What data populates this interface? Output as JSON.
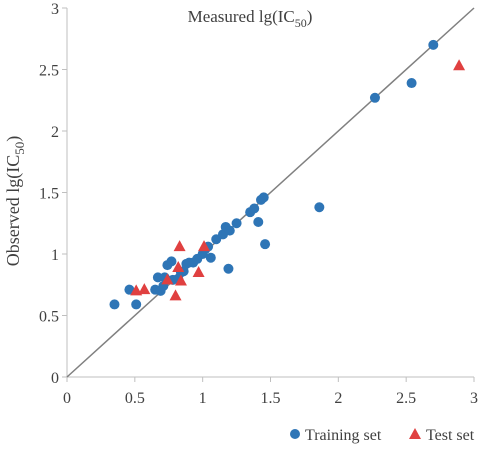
{
  "chart_data": {
    "type": "scatter",
    "title": "Measured lg(IC50)",
    "title_main": "Measured lg(IC",
    "title_sub": "50",
    "title_close": ")",
    "xlabel": "",
    "ylabel": "Observed lg(IC50)",
    "ylabel_main": "Observed lg(IC",
    "ylabel_sub": "50",
    "ylabel_close": ")",
    "xlim": [
      0,
      3
    ],
    "ylim": [
      0,
      3
    ],
    "x_ticks": [
      "0",
      "0.5",
      "1",
      "1.5",
      "2",
      "2.5",
      "3"
    ],
    "y_ticks": [
      "0",
      "0.5",
      "1",
      "1.5",
      "2",
      "2.5",
      "3"
    ],
    "reference_line": {
      "x": [
        0,
        3
      ],
      "y": [
        0,
        3
      ],
      "color": "#808080"
    },
    "grid": false,
    "legend_position": "bottom-right",
    "series": [
      {
        "name": "Training set",
        "marker": "circle",
        "color": "#2e75b6",
        "points": [
          [
            0.35,
            0.59
          ],
          [
            0.46,
            0.71
          ],
          [
            0.51,
            0.59
          ],
          [
            0.65,
            0.71
          ],
          [
            0.67,
            0.81
          ],
          [
            0.69,
            0.7
          ],
          [
            0.71,
            0.74
          ],
          [
            0.72,
            0.81
          ],
          [
            0.74,
            0.91
          ],
          [
            0.77,
            0.94
          ],
          [
            0.78,
            0.79
          ],
          [
            0.82,
            0.8
          ],
          [
            0.84,
            0.85
          ],
          [
            0.86,
            0.86
          ],
          [
            0.88,
            0.92
          ],
          [
            0.9,
            0.93
          ],
          [
            0.93,
            0.93
          ],
          [
            0.96,
            0.96
          ],
          [
            1.0,
            1.0
          ],
          [
            1.02,
            1.04
          ],
          [
            1.04,
            1.06
          ],
          [
            1.06,
            0.97
          ],
          [
            1.1,
            1.12
          ],
          [
            1.15,
            1.16
          ],
          [
            1.17,
            1.22
          ],
          [
            1.19,
            0.88
          ],
          [
            1.2,
            1.19
          ],
          [
            1.25,
            1.25
          ],
          [
            1.35,
            1.34
          ],
          [
            1.38,
            1.37
          ],
          [
            1.41,
            1.26
          ],
          [
            1.43,
            1.44
          ],
          [
            1.45,
            1.46
          ],
          [
            1.46,
            1.08
          ],
          [
            1.86,
            1.38
          ],
          [
            2.27,
            2.27
          ],
          [
            2.54,
            2.39
          ],
          [
            2.7,
            2.7
          ]
        ]
      },
      {
        "name": "Test set",
        "marker": "triangle",
        "color": "#e04040",
        "points": [
          [
            0.51,
            0.7
          ],
          [
            0.57,
            0.71
          ],
          [
            0.74,
            0.79
          ],
          [
            0.8,
            0.66
          ],
          [
            0.82,
            0.89
          ],
          [
            0.83,
            1.06
          ],
          [
            0.84,
            0.78
          ],
          [
            0.97,
            0.85
          ],
          [
            1.01,
            1.06
          ],
          [
            2.89,
            2.53
          ]
        ]
      }
    ]
  }
}
